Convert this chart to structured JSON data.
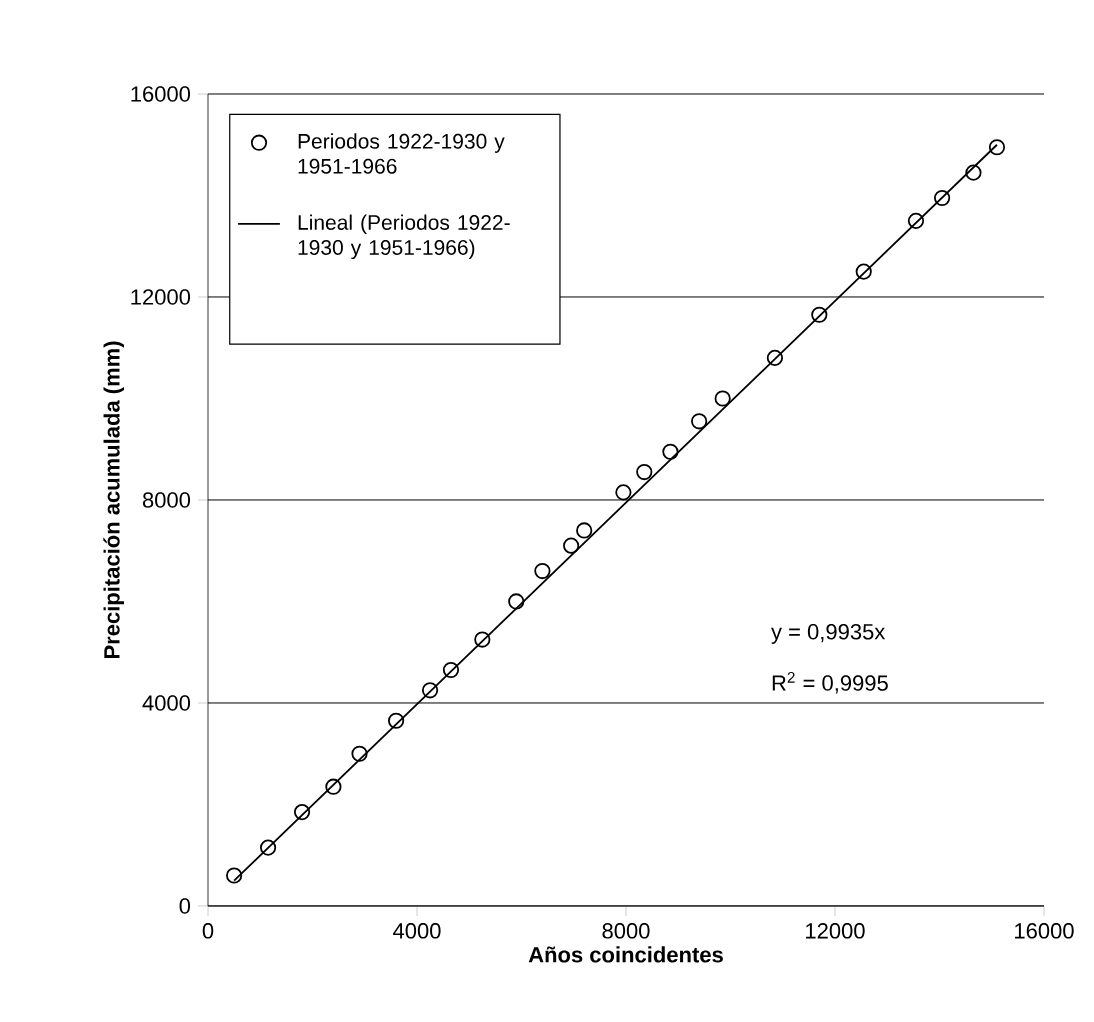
{
  "chart_data": {
    "type": "scatter",
    "xlabel": "Años coincidentes",
    "ylabel": "Precipitación acumulada (mm)",
    "xlim": [
      0,
      16000
    ],
    "ylim": [
      0,
      16000
    ],
    "xticks": [
      0,
      4000,
      8000,
      12000,
      16000
    ],
    "yticks": [
      0,
      4000,
      8000,
      12000,
      16000
    ],
    "grid": "y",
    "legend": "top left",
    "marker": "circle",
    "annotations": [
      "y = 0,9935x",
      "R$^{2}$ = 0,9995"
    ],
    "series": [
      {
        "name": "Periodos 1922-1930 y 1951-1966",
        "color": "#000000",
        "x": [
          500,
          1150,
          1800,
          2400,
          2900,
          3600,
          4250,
          4650,
          5250,
          5900,
          6400,
          6950,
          7200,
          7950,
          8350,
          8850,
          9400,
          9850,
          10850,
          11700,
          12550,
          13550,
          14050,
          14650,
          15100
        ],
        "values": [
          600,
          1150,
          1850,
          2350,
          3000,
          3650,
          4250,
          4650,
          5250,
          6000,
          6600,
          7100,
          7400,
          8150,
          8550,
          8950,
          9550,
          10000,
          10800,
          11650,
          12500,
          13500,
          13950,
          14450,
          14950
        ]
      },
      {
        "name": "Lineal (Periodos 1922-1930 y 1951-1966)",
        "type": "line",
        "color": "#000000",
        "marker": "none",
        "line_style": "solid",
        "x": [
          500,
          15100
        ],
        "values": [
          500,
          15000
        ]
      }
    ]
  }
}
